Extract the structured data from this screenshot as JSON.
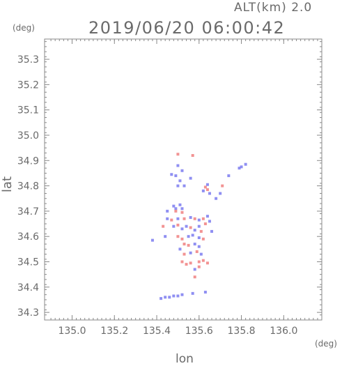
{
  "header": {
    "altitude": "ALT(km)  2.0",
    "timestamp": "2019/06/20 06:00:42"
  },
  "chart_data": {
    "type": "scatter",
    "xlabel": "lon",
    "ylabel": "lat",
    "xunit": "(deg)",
    "yunit": "(deg)",
    "xlim": [
      134.87,
      136.18
    ],
    "ylim": [
      34.27,
      35.38
    ],
    "xticks": [
      135.0,
      135.2,
      135.4,
      135.6,
      135.8,
      136.0
    ],
    "xtick_labels": [
      "135.0",
      "135.2",
      "135.4",
      "135.6",
      "135.8",
      "136.0"
    ],
    "yticks": [
      34.3,
      34.4,
      34.5,
      34.6,
      34.7,
      34.8,
      34.9,
      35.0,
      35.1,
      35.2,
      35.3
    ],
    "ytick_labels": [
      "34.3",
      "34.4",
      "34.5",
      "34.6",
      "34.7",
      "34.8",
      "34.9",
      "35.0",
      "35.1",
      "35.2",
      "35.3"
    ],
    "colors": {
      "positive": "#f08080",
      "negative": "#7b7bf0",
      "axis": "#888888"
    },
    "points": [
      {
        "x": 135.5,
        "y": 34.925,
        "s": "pos"
      },
      {
        "x": 135.57,
        "y": 34.92,
        "s": "pos"
      },
      {
        "x": 135.5,
        "y": 34.88,
        "s": "neg"
      },
      {
        "x": 135.52,
        "y": 34.86,
        "s": "neg"
      },
      {
        "x": 135.49,
        "y": 34.84,
        "s": "neg"
      },
      {
        "x": 135.47,
        "y": 34.845,
        "s": "neg"
      },
      {
        "x": 135.51,
        "y": 34.82,
        "s": "neg"
      },
      {
        "x": 135.5,
        "y": 34.8,
        "s": "neg"
      },
      {
        "x": 135.53,
        "y": 34.8,
        "s": "neg"
      },
      {
        "x": 135.56,
        "y": 34.83,
        "s": "neg"
      },
      {
        "x": 135.63,
        "y": 34.795,
        "s": "pos"
      },
      {
        "x": 135.64,
        "y": 34.785,
        "s": "pos"
      },
      {
        "x": 135.62,
        "y": 34.78,
        "s": "neg"
      },
      {
        "x": 135.65,
        "y": 34.77,
        "s": "neg"
      },
      {
        "x": 135.64,
        "y": 34.805,
        "s": "neg"
      },
      {
        "x": 135.71,
        "y": 34.8,
        "s": "pos"
      },
      {
        "x": 135.7,
        "y": 34.77,
        "s": "neg"
      },
      {
        "x": 135.68,
        "y": 34.75,
        "s": "neg"
      },
      {
        "x": 135.74,
        "y": 34.84,
        "s": "neg"
      },
      {
        "x": 135.79,
        "y": 34.87,
        "s": "neg"
      },
      {
        "x": 135.8,
        "y": 34.875,
        "s": "neg"
      },
      {
        "x": 135.82,
        "y": 34.885,
        "s": "neg"
      },
      {
        "x": 135.48,
        "y": 34.72,
        "s": "neg"
      },
      {
        "x": 135.49,
        "y": 34.71,
        "s": "neg"
      },
      {
        "x": 135.49,
        "y": 34.7,
        "s": "pos"
      },
      {
        "x": 135.51,
        "y": 34.725,
        "s": "neg"
      },
      {
        "x": 135.52,
        "y": 34.71,
        "s": "neg"
      },
      {
        "x": 135.52,
        "y": 34.695,
        "s": "pos"
      },
      {
        "x": 135.45,
        "y": 34.67,
        "s": "neg"
      },
      {
        "x": 135.47,
        "y": 34.665,
        "s": "pos"
      },
      {
        "x": 135.5,
        "y": 34.67,
        "s": "neg"
      },
      {
        "x": 135.53,
        "y": 34.67,
        "s": "pos"
      },
      {
        "x": 135.56,
        "y": 34.675,
        "s": "neg"
      },
      {
        "x": 135.58,
        "y": 34.67,
        "s": "pos"
      },
      {
        "x": 135.6,
        "y": 34.665,
        "s": "neg"
      },
      {
        "x": 135.62,
        "y": 34.67,
        "s": "pos"
      },
      {
        "x": 135.64,
        "y": 34.68,
        "s": "neg"
      },
      {
        "x": 135.65,
        "y": 34.66,
        "s": "neg"
      },
      {
        "x": 135.63,
        "y": 34.65,
        "s": "pos"
      },
      {
        "x": 135.48,
        "y": 34.64,
        "s": "neg"
      },
      {
        "x": 135.5,
        "y": 34.645,
        "s": "pos"
      },
      {
        "x": 135.52,
        "y": 34.63,
        "s": "neg"
      },
      {
        "x": 135.54,
        "y": 34.64,
        "s": "neg"
      },
      {
        "x": 135.56,
        "y": 34.635,
        "s": "pos"
      },
      {
        "x": 135.58,
        "y": 34.625,
        "s": "neg"
      },
      {
        "x": 135.6,
        "y": 34.64,
        "s": "neg"
      },
      {
        "x": 135.61,
        "y": 34.62,
        "s": "pos"
      },
      {
        "x": 135.44,
        "y": 34.6,
        "s": "neg"
      },
      {
        "x": 135.38,
        "y": 34.585,
        "s": "neg"
      },
      {
        "x": 135.5,
        "y": 34.6,
        "s": "pos"
      },
      {
        "x": 135.52,
        "y": 34.59,
        "s": "pos"
      },
      {
        "x": 135.55,
        "y": 34.6,
        "s": "neg"
      },
      {
        "x": 135.57,
        "y": 34.605,
        "s": "neg"
      },
      {
        "x": 135.6,
        "y": 34.595,
        "s": "neg"
      },
      {
        "x": 135.62,
        "y": 34.59,
        "s": "pos"
      },
      {
        "x": 135.53,
        "y": 34.57,
        "s": "pos"
      },
      {
        "x": 135.55,
        "y": 34.565,
        "s": "pos"
      },
      {
        "x": 135.58,
        "y": 34.57,
        "s": "neg"
      },
      {
        "x": 135.6,
        "y": 34.56,
        "s": "neg"
      },
      {
        "x": 135.51,
        "y": 34.55,
        "s": "neg"
      },
      {
        "x": 135.53,
        "y": 34.53,
        "s": "pos"
      },
      {
        "x": 135.56,
        "y": 34.535,
        "s": "neg"
      },
      {
        "x": 135.59,
        "y": 34.54,
        "s": "pos"
      },
      {
        "x": 135.61,
        "y": 34.53,
        "s": "neg"
      },
      {
        "x": 135.52,
        "y": 34.5,
        "s": "pos"
      },
      {
        "x": 135.54,
        "y": 34.49,
        "s": "pos"
      },
      {
        "x": 135.56,
        "y": 34.495,
        "s": "pos"
      },
      {
        "x": 135.6,
        "y": 34.5,
        "s": "pos"
      },
      {
        "x": 135.62,
        "y": 34.505,
        "s": "pos"
      },
      {
        "x": 135.64,
        "y": 34.495,
        "s": "pos"
      },
      {
        "x": 135.58,
        "y": 34.47,
        "s": "neg"
      },
      {
        "x": 135.6,
        "y": 34.48,
        "s": "pos"
      },
      {
        "x": 135.58,
        "y": 34.44,
        "s": "pos"
      },
      {
        "x": 135.42,
        "y": 34.355,
        "s": "neg"
      },
      {
        "x": 135.44,
        "y": 34.36,
        "s": "neg"
      },
      {
        "x": 135.46,
        "y": 34.36,
        "s": "neg"
      },
      {
        "x": 135.48,
        "y": 34.365,
        "s": "neg"
      },
      {
        "x": 135.5,
        "y": 34.365,
        "s": "neg"
      },
      {
        "x": 135.52,
        "y": 34.37,
        "s": "neg"
      },
      {
        "x": 135.57,
        "y": 34.375,
        "s": "neg"
      },
      {
        "x": 135.63,
        "y": 34.38,
        "s": "neg"
      },
      {
        "x": 135.43,
        "y": 34.64,
        "s": "pos"
      },
      {
        "x": 135.45,
        "y": 34.7,
        "s": "neg"
      },
      {
        "x": 135.66,
        "y": 34.62,
        "s": "neg"
      }
    ]
  }
}
